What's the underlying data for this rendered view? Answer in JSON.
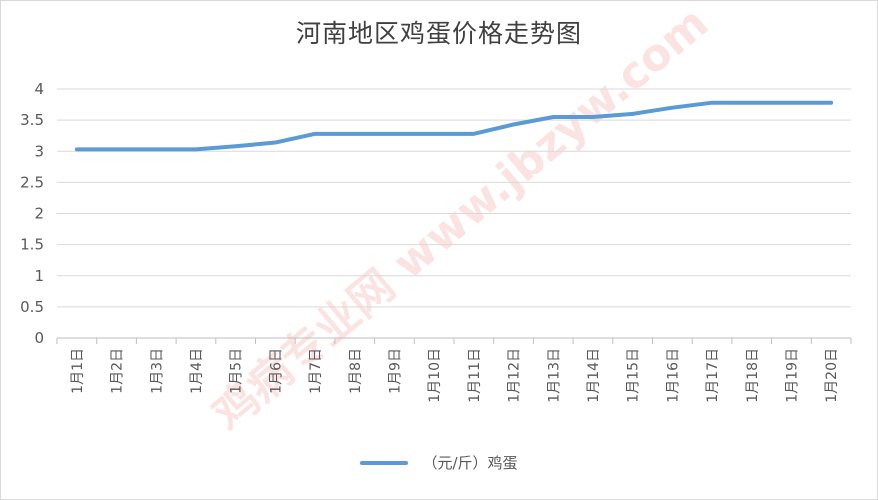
{
  "chart_data": {
    "type": "line",
    "title": "河南地区鸡蛋价格走势图",
    "categories": [
      "1月1日",
      "1月2日",
      "1月3日",
      "1月4日",
      "1月5日",
      "1月6日",
      "1月7日",
      "1月8日",
      "1月9日",
      "1月10日",
      "1月11日",
      "1月12日",
      "1月13日",
      "1月14日",
      "1月15日",
      "1月16日",
      "1月17日",
      "1月18日",
      "1月19日",
      "1月20日"
    ],
    "series": [
      {
        "name": "（元/斤）鸡蛋",
        "values": [
          3.03,
          3.03,
          3.03,
          3.03,
          3.08,
          3.14,
          3.28,
          3.28,
          3.28,
          3.28,
          3.28,
          3.43,
          3.55,
          3.55,
          3.6,
          3.7,
          3.78,
          3.78,
          3.78,
          3.78
        ],
        "color": "#5b9bd5"
      }
    ],
    "ylim": [
      0,
      4
    ],
    "yticks": [
      "0",
      "0.5",
      "1",
      "1.5",
      "2",
      "2.5",
      "3",
      "3.5",
      "4"
    ],
    "xlabel": "",
    "ylabel": "",
    "grid": true,
    "legend": "bottom"
  },
  "watermark": "鸡病专业网 www.jbzyw.com"
}
